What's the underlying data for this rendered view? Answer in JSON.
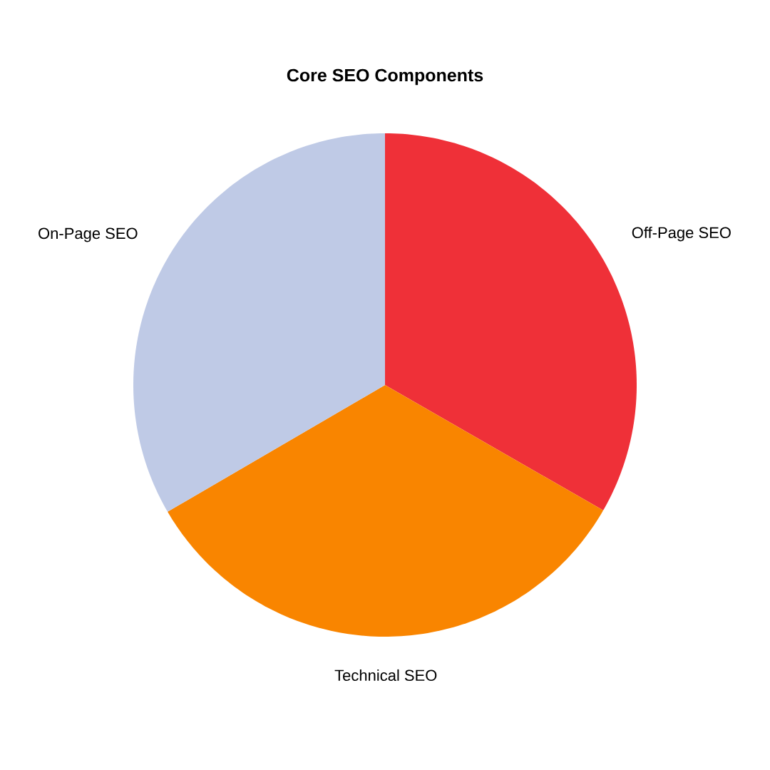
{
  "chart_data": {
    "type": "pie",
    "title": "Core SEO Components",
    "categories": [
      "Off-Page SEO",
      "Technical SEO",
      "On-Page SEO"
    ],
    "values": [
      33.3,
      33.3,
      33.4
    ],
    "colors": [
      "#ef3038",
      "#f98500",
      "#bfcae6"
    ]
  }
}
